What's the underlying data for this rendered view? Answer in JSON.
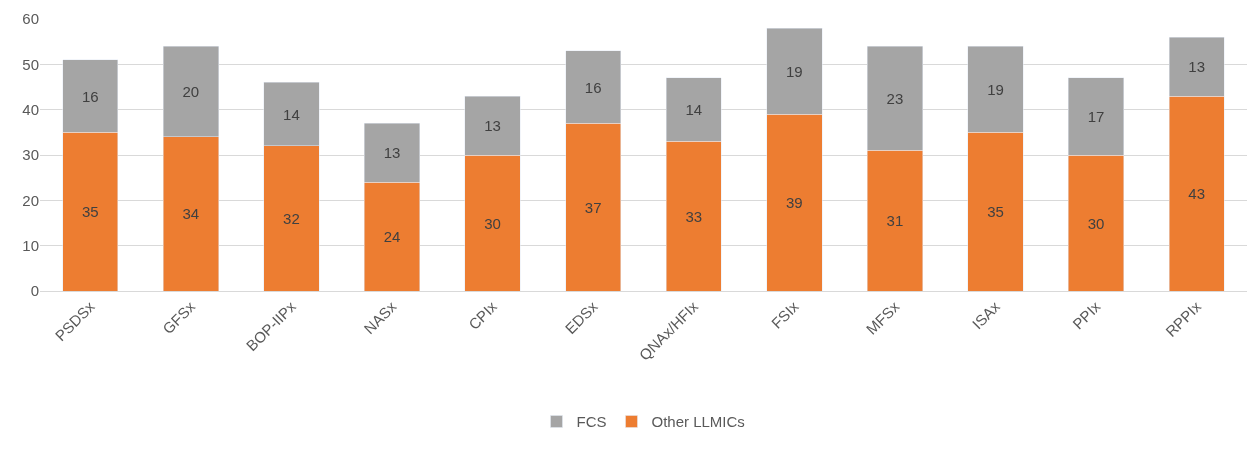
{
  "chart_data": {
    "type": "bar",
    "stacked": true,
    "categories": [
      "PSDSx",
      "GFSx",
      "BOP-IIPx",
      "NASx",
      "CPIx",
      "EDSx",
      "QNAx/HFIx",
      "FSIx",
      "MFSx",
      "ISAx",
      "PPIx",
      "RPPIx"
    ],
    "series": [
      {
        "name": "Other LLMICs",
        "color": "#ed7d31",
        "values": [
          35,
          34,
          32,
          24,
          30,
          37,
          33,
          39,
          31,
          35,
          30,
          43
        ]
      },
      {
        "name": "FCS",
        "color": "#a5a5a5",
        "values": [
          16,
          20,
          14,
          13,
          13,
          16,
          14,
          19,
          23,
          19,
          17,
          13
        ]
      }
    ],
    "ylim": [
      0,
      60
    ],
    "yticks": [
      0,
      10,
      20,
      30,
      40,
      50,
      60
    ],
    "grid": "y",
    "legend": "bottom",
    "data_labels": true
  }
}
